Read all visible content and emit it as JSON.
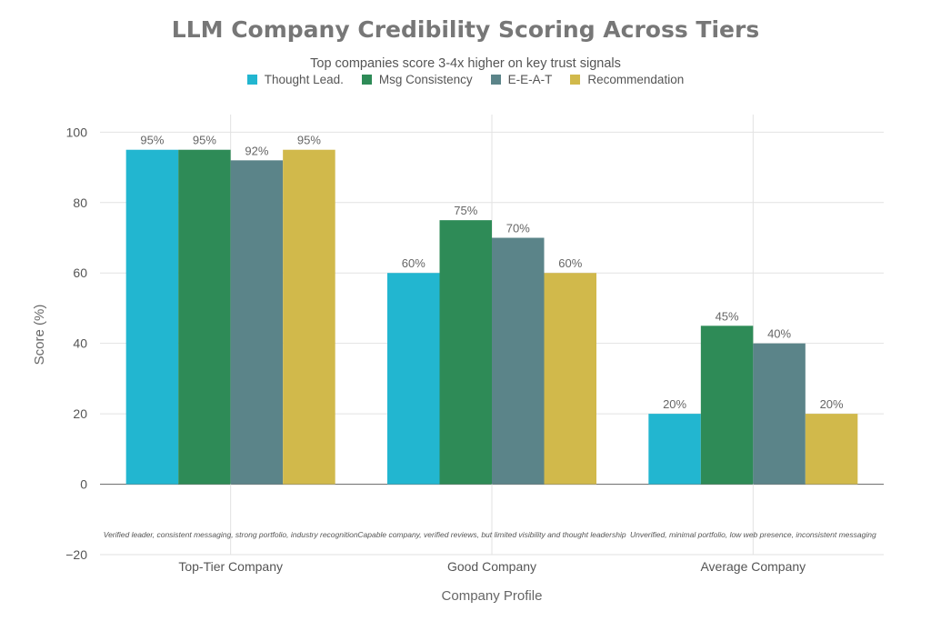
{
  "chart_data": {
    "type": "bar",
    "title": "LLM Company Credibility Scoring Across Tiers",
    "subtitle": "Top companies score 3-4x higher on key trust signals",
    "xlabel": "Company Profile",
    "ylabel": "Score (%)",
    "ylim": [
      -20,
      105
    ],
    "yticks": [
      -20,
      0,
      20,
      40,
      60,
      80,
      100
    ],
    "ytick_labels": [
      "−20",
      "0",
      "20",
      "40",
      "60",
      "80",
      "100"
    ],
    "grid": true,
    "legend_position": "top-center",
    "categories": [
      "Top-Tier Company",
      "Good Company",
      "Average Company"
    ],
    "series": [
      {
        "name": "Thought Lead.",
        "color": "#22b6d0",
        "values": [
          95,
          60,
          20
        ],
        "labels": [
          "95%",
          "60%",
          "20%"
        ]
      },
      {
        "name": "Msg Consistency",
        "color": "#2e8b57",
        "values": [
          95,
          75,
          45
        ],
        "labels": [
          "95%",
          "75%",
          "45%"
        ]
      },
      {
        "name": "E-E-A-T",
        "color": "#5b8489",
        "values": [
          92,
          70,
          40
        ],
        "labels": [
          "92%",
          "70%",
          "40%"
        ]
      },
      {
        "name": "Recommendation",
        "color": "#d1b94b",
        "values": [
          95,
          60,
          20
        ],
        "labels": [
          "95%",
          "60%",
          "20%"
        ]
      }
    ],
    "annotations": [
      "Verified leader, consistent messaging, strong portfolio, industry recognition",
      "Capable company, verified reviews, but limited visibility and thought leadership",
      "Unverified, minimal portfolio, low web presence, inconsistent messaging"
    ]
  }
}
